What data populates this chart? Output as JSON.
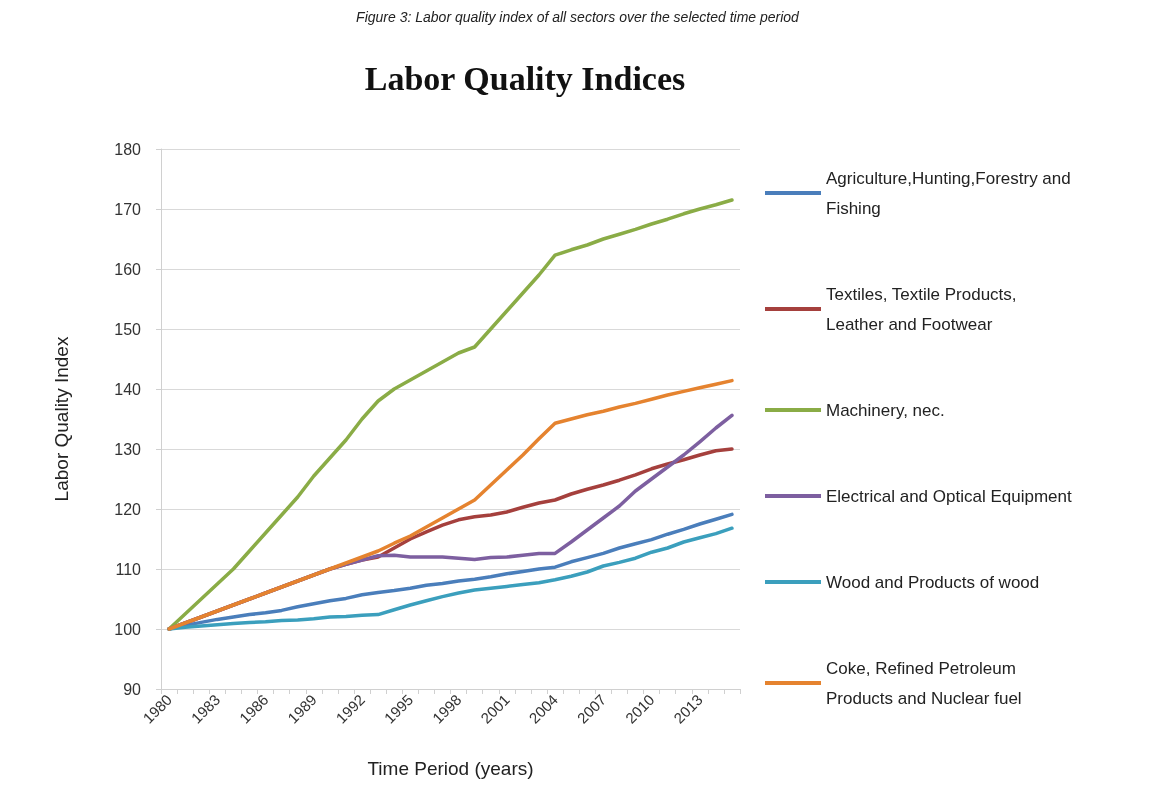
{
  "chart_data": {
    "type": "line",
    "title": "Labor Quality Indices",
    "annotations": [
      "Figure 3: Labor quality index of all sectors over the selected time period"
    ],
    "xlabel": "Time Period (years)",
    "ylabel": "Labor Quality Index",
    "categories": [
      "1980",
      null,
      null,
      "1983",
      null,
      null,
      "1986",
      null,
      null,
      "1989",
      null,
      null,
      "1992",
      null,
      null,
      "1995",
      null,
      null,
      "1998",
      null,
      null,
      "2001",
      null,
      null,
      "2004",
      null,
      null,
      "2007",
      null,
      null,
      "2010",
      null,
      null,
      "2013",
      null,
      null
    ],
    "ylim": [
      90,
      180
    ],
    "yticks": [
      90,
      100,
      110,
      120,
      130,
      140,
      150,
      160,
      170,
      180
    ],
    "grid": "y",
    "legend": "right",
    "marker": "none",
    "line_style": "solid",
    "series": [
      {
        "name": "Agriculture,Hunting,Forestry and Fishing",
        "color": "#4a7ebb",
        "values": [
          100,
          100.6,
          101.1,
          101.6,
          102,
          102.4,
          102.7,
          103.1,
          103.7,
          104.2,
          104.7,
          105.1,
          105.7,
          106.1,
          106.4,
          106.8,
          107.3,
          107.6,
          108,
          108.3,
          108.7,
          109.2,
          109.6,
          110,
          110.3,
          111.2,
          111.9,
          112.6,
          113.5,
          114.2,
          114.9,
          115.8,
          116.6,
          117.5,
          118.3,
          119.1
        ]
      },
      {
        "name": "Textiles, Textile Products, Leather and Footwear",
        "color": "#a5403d",
        "values": [
          100,
          101,
          102,
          103,
          104,
          105,
          106,
          107,
          108,
          109,
          110,
          110.8,
          111.5,
          112,
          113.5,
          115,
          116.2,
          117.3,
          118.2,
          118.7,
          119,
          119.5,
          120.3,
          121,
          121.5,
          122.5,
          123.3,
          124,
          124.8,
          125.7,
          126.7,
          127.5,
          128.2,
          129,
          129.7,
          130
        ]
      },
      {
        "name": "Machinery, nec.",
        "color": "#8aac46",
        "values": [
          100,
          102.5,
          105,
          107.5,
          110,
          113,
          116,
          119,
          122,
          125.5,
          128.5,
          131.5,
          135,
          138,
          140,
          141.5,
          143,
          144.5,
          146,
          147,
          150,
          153,
          156,
          159,
          162.3,
          163.2,
          164,
          165,
          165.8,
          166.6,
          167.5,
          168.3,
          169.2,
          170,
          170.7,
          171.5
        ]
      },
      {
        "name": "Electrical and Optical Equipment",
        "color": "#7d5fa0",
        "values": [
          100,
          101,
          102,
          103,
          104,
          105,
          106,
          107,
          108,
          109,
          110,
          110.8,
          111.5,
          112.2,
          112.3,
          112,
          112,
          112,
          111.8,
          111.6,
          111.9,
          112,
          112.3,
          112.6,
          112.6,
          114.5,
          116.5,
          118.5,
          120.5,
          123,
          125,
          127,
          129,
          131.2,
          133.5,
          135.6
        ]
      },
      {
        "name": "Wood and Products of wood",
        "color": "#3b9fbd",
        "values": [
          100,
          100.3,
          100.5,
          100.7,
          100.9,
          101.1,
          101.2,
          101.4,
          101.5,
          101.7,
          102,
          102.1,
          102.3,
          102.4,
          103.2,
          104,
          104.7,
          105.4,
          106,
          106.5,
          106.8,
          107.1,
          107.4,
          107.7,
          108.2,
          108.8,
          109.5,
          110.5,
          111.1,
          111.8,
          112.8,
          113.5,
          114.5,
          115.2,
          115.9,
          116.8
        ]
      },
      {
        "name": "Coke, Refined Petroleum Products and Nuclear fuel",
        "color": "#e5832f",
        "values": [
          100,
          101,
          102,
          103,
          104,
          105,
          106,
          107,
          108,
          109,
          110,
          111,
          112,
          113,
          114.3,
          115.5,
          117,
          118.5,
          120,
          121.5,
          124,
          126.5,
          129,
          131.7,
          134.3,
          135,
          135.7,
          136.3,
          137,
          137.6,
          138.3,
          139,
          139.6,
          140.2,
          140.8,
          141.4
        ]
      }
    ]
  }
}
